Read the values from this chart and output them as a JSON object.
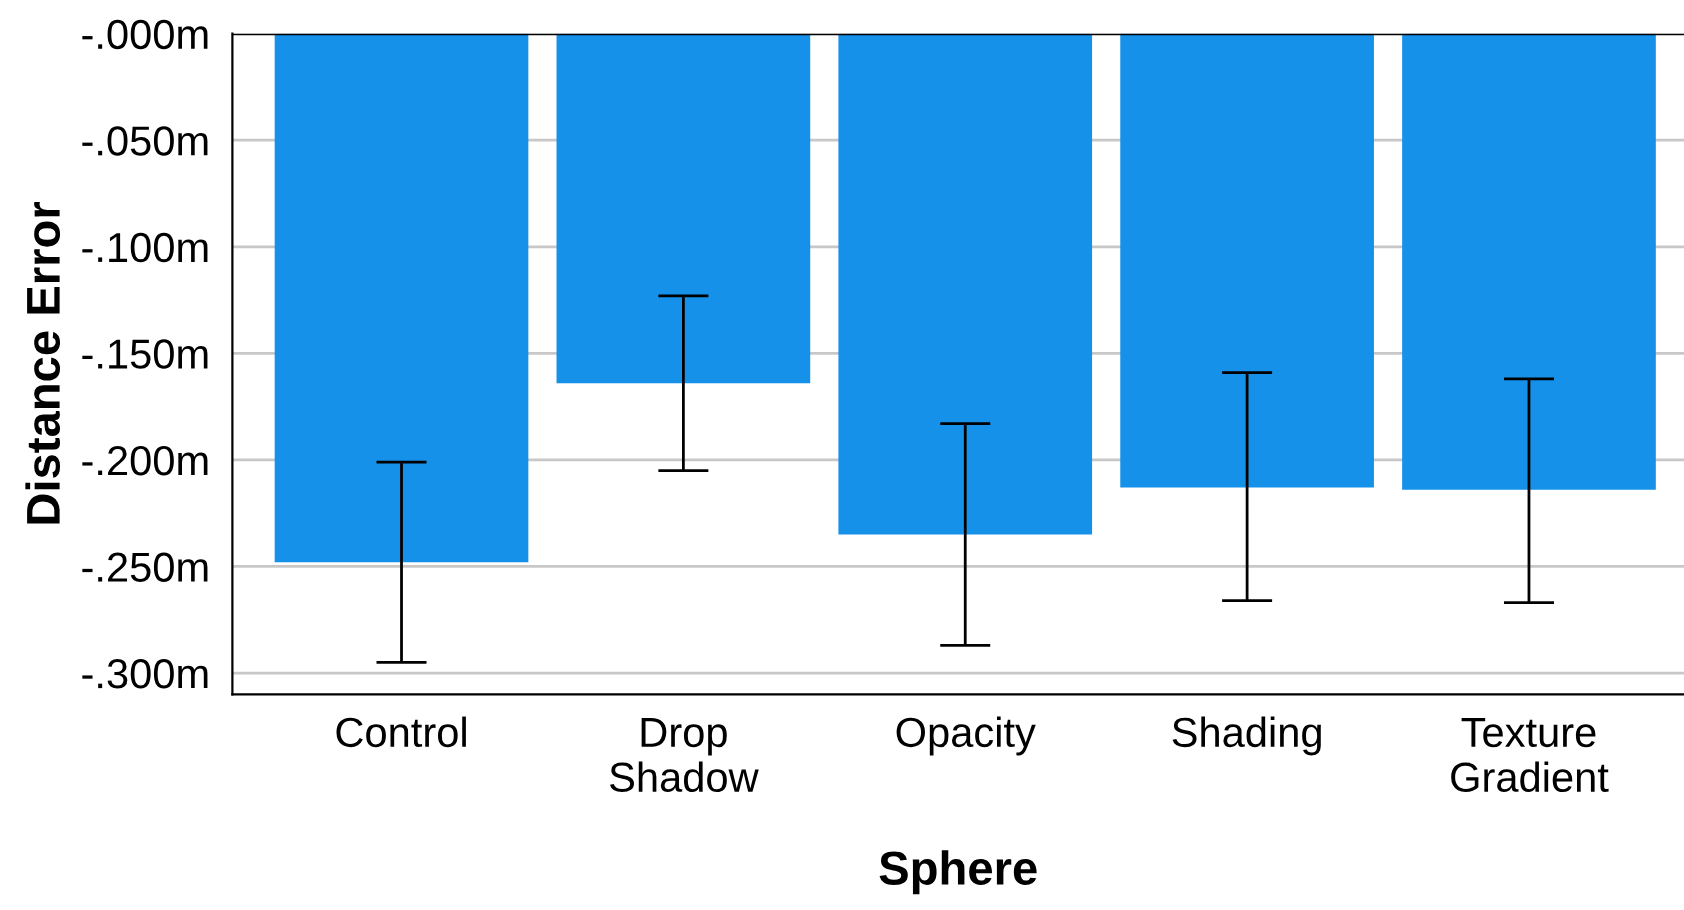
{
  "chart_data": {
    "type": "bar",
    "xlabel": "Sphere",
    "ylabel": "Distance Error",
    "categories": [
      "Control",
      "Drop\nShadow",
      "Opacity",
      "Shading",
      "Texture\nGradient"
    ],
    "values": [
      -0.248,
      -0.164,
      -0.235,
      -0.213,
      -0.214
    ],
    "errors": [
      [
        -0.295,
        -0.201
      ],
      [
        -0.205,
        -0.123
      ],
      [
        -0.287,
        -0.183
      ],
      [
        -0.266,
        -0.159
      ],
      [
        -0.267,
        -0.162
      ]
    ],
    "color": "#1591ea",
    "ylim": [
      -0.31,
      0
    ],
    "yticks": [
      {
        "value": -0.3,
        "label": "-.300m"
      },
      {
        "value": -0.25,
        "label": "-.250m"
      },
      {
        "value": -0.2,
        "label": "-.200m"
      },
      {
        "value": -0.15,
        "label": "-.150m"
      },
      {
        "value": -0.1,
        "label": "-.100m"
      },
      {
        "value": -0.05,
        "label": "-.050m"
      },
      {
        "value": 0,
        "label": "-.000m"
      }
    ],
    "grid": "y"
  }
}
